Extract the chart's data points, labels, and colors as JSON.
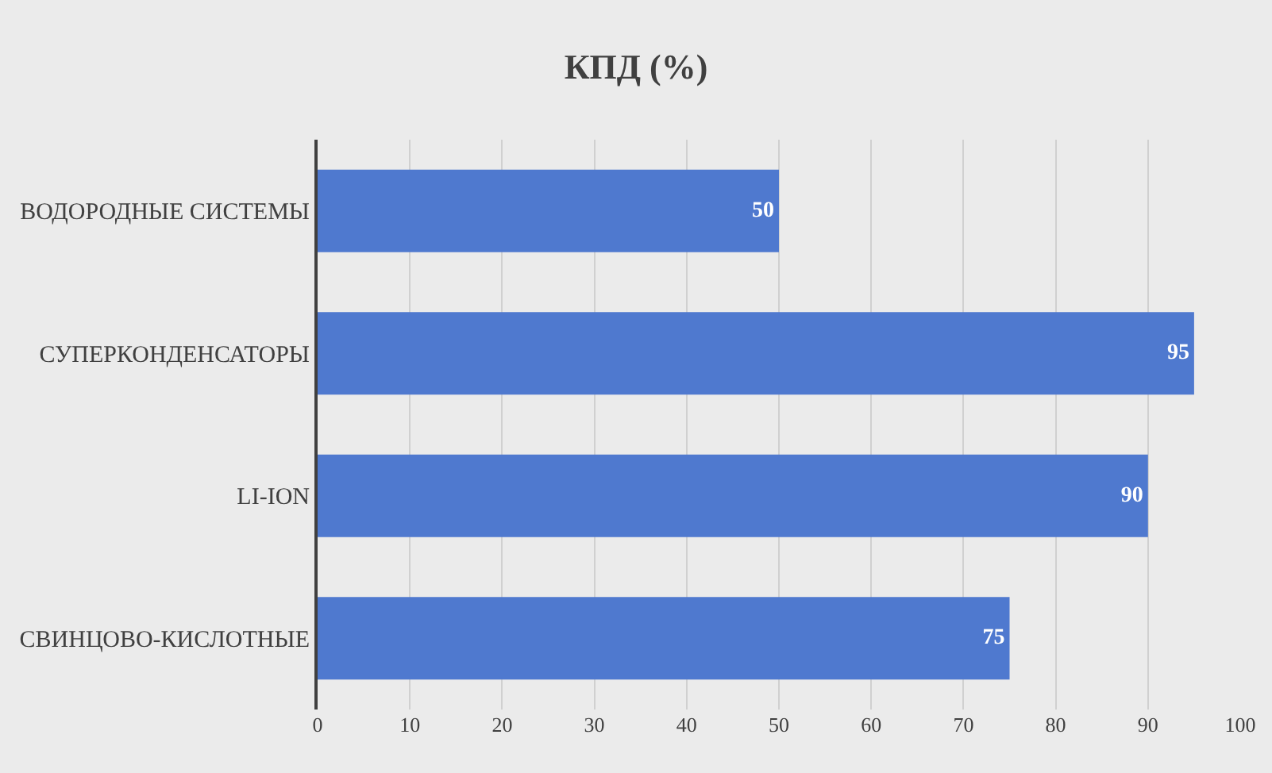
{
  "chart_data": {
    "type": "bar",
    "orientation": "horizontal",
    "title": "КПД (%)",
    "categories": [
      "ВОДОРОДНЫЕ СИСТЕМЫ",
      "СУПЕРКОНДЕНСАТОРЫ",
      "LI-ION",
      "СВИНЦОВО-КИСЛОТНЫЕ"
    ],
    "values": [
      50,
      95,
      90,
      75
    ],
    "color": "#4f79cf",
    "xlim": [
      0,
      100
    ],
    "xticks": [
      0,
      10,
      20,
      30,
      40,
      50,
      60,
      70,
      80,
      90,
      100
    ],
    "grid": "x",
    "data_labels": true
  }
}
